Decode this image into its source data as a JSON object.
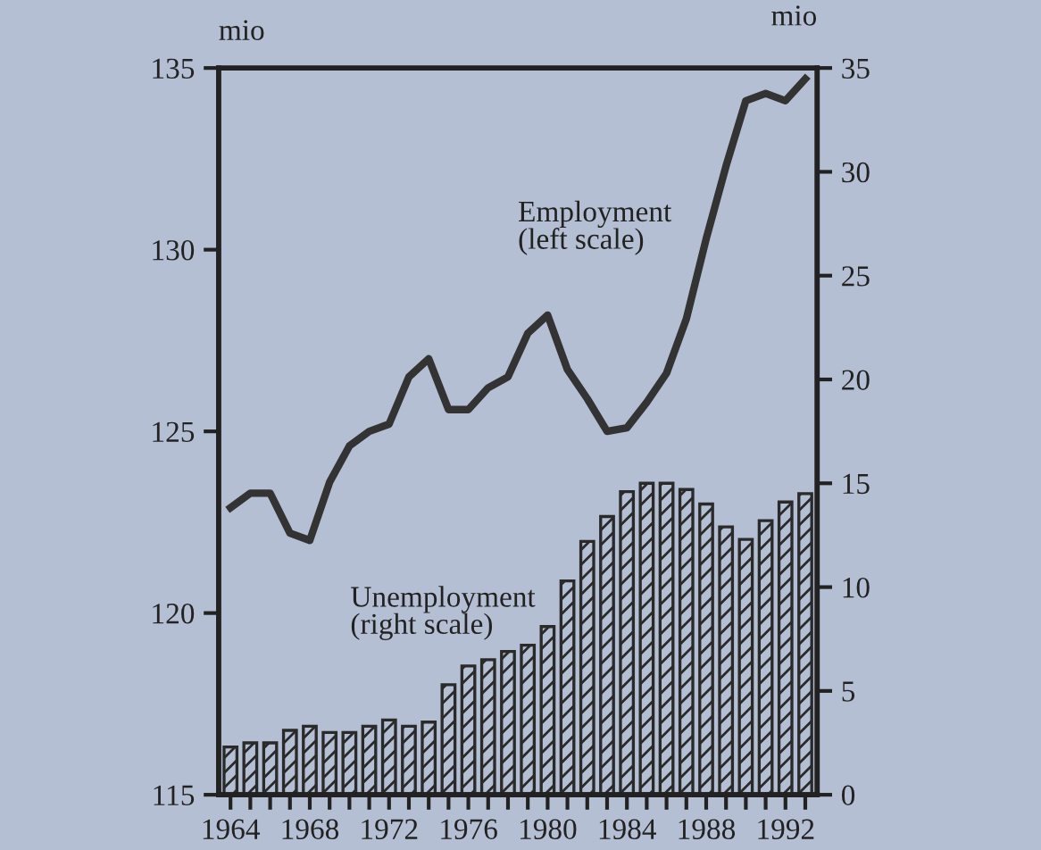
{
  "chart_data": {
    "type": "line",
    "ylabel": "mio",
    "y2label": "mio",
    "x": [
      1964,
      1965,
      1966,
      1967,
      1968,
      1969,
      1970,
      1971,
      1972,
      1973,
      1974,
      1975,
      1976,
      1977,
      1978,
      1979,
      1980,
      1981,
      1982,
      1983,
      1984,
      1985,
      1986,
      1987,
      1988,
      1989,
      1990,
      1991,
      1992,
      1993
    ],
    "series": [
      {
        "name": "Unemployment\n(right scale)",
        "type": "bar",
        "axis": "y2",
        "color": "#2a2a2a",
        "values": [
          2.3,
          2.5,
          2.5,
          3.1,
          3.3,
          3.0,
          3.0,
          3.3,
          3.6,
          3.3,
          3.5,
          5.3,
          6.2,
          6.5,
          6.9,
          7.2,
          8.1,
          10.3,
          12.2,
          13.4,
          14.6,
          15.0,
          15.0,
          14.7,
          14.0,
          12.9,
          12.3,
          13.2,
          14.1,
          14.5
        ]
      },
      {
        "name": "Employment\n(left scale)",
        "color": "#333333",
        "values": [
          122.9,
          123.3,
          123.3,
          122.2,
          122.0,
          123.6,
          124.6,
          125.0,
          125.2,
          126.5,
          127.0,
          125.6,
          125.6,
          126.2,
          126.5,
          127.7,
          128.2,
          126.7,
          125.9,
          125.0,
          125.1,
          125.8,
          126.6,
          128.1,
          130.3,
          132.3,
          134.1,
          134.3,
          134.1,
          134.7
        ]
      }
    ],
    "xlim": [
      1963.4,
      1993.6
    ],
    "xticks": [
      1964,
      {
        "value": 1965,
        "label": null
      },
      {
        "value": 1966,
        "label": null
      },
      {
        "value": 1967,
        "label": null
      },
      1968,
      {
        "value": 1969,
        "label": null
      },
      {
        "value": 1970,
        "label": null
      },
      {
        "value": 1971,
        "label": null
      },
      1972,
      {
        "value": 1973,
        "label": null
      },
      {
        "value": 1974,
        "label": null
      },
      {
        "value": 1975,
        "label": null
      },
      1976,
      {
        "value": 1977,
        "label": null
      },
      {
        "value": 1978,
        "label": null
      },
      {
        "value": 1979,
        "label": null
      },
      1980,
      {
        "value": 1981,
        "label": null
      },
      {
        "value": 1982,
        "label": null
      },
      {
        "value": 1983,
        "label": null
      },
      1984,
      {
        "value": 1985,
        "label": null
      },
      {
        "value": 1986,
        "label": null
      },
      {
        "value": 1987,
        "label": null
      },
      1988,
      {
        "value": 1989,
        "label": null
      },
      {
        "value": 1990,
        "label": null
      },
      {
        "value": 1991,
        "label": null
      },
      1992,
      {
        "value": 1993,
        "label": null
      }
    ],
    "ylim": [
      115,
      135
    ],
    "yticks": [
      115,
      120,
      125,
      130,
      135
    ],
    "y2lim": [
      0,
      35
    ],
    "y2ticks": [
      0,
      5,
      10,
      15,
      20,
      25,
      30,
      35
    ],
    "grid": false,
    "legend": false
  }
}
